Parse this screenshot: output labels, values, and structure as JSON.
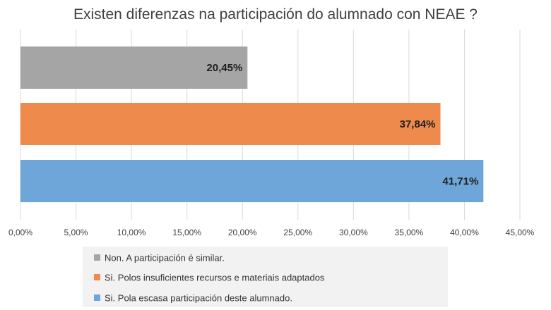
{
  "chart_data": {
    "type": "bar",
    "orientation": "horizontal",
    "title": "Existen diferenzas na participación do alumnado con NEAE ?",
    "xlabel": "",
    "ylabel": "",
    "xlim": [
      0,
      45
    ],
    "x_ticks": [
      0,
      5,
      10,
      15,
      20,
      25,
      30,
      35,
      40,
      45
    ],
    "x_tick_labels": [
      "0,00%",
      "5,00%",
      "10,00%",
      "15,00%",
      "20,00%",
      "25,00%",
      "30,00%",
      "35,00%",
      "40,00%",
      "45,00%"
    ],
    "grid": true,
    "legend_position": "bottom",
    "series": [
      {
        "name": "Non. A participación é similar.",
        "value": 20.45,
        "label": "20,45%",
        "color": "#A5A5A5"
      },
      {
        "name": "Si. Polos insuficientes recursos e materiais adaptados",
        "value": 37.84,
        "label": "37,84%",
        "color": "#ED8A4C"
      },
      {
        "name": "Si. Pola escasa participación deste alumnado.",
        "value": 41.71,
        "label": "41,71%",
        "color": "#6FA6DA"
      }
    ]
  }
}
